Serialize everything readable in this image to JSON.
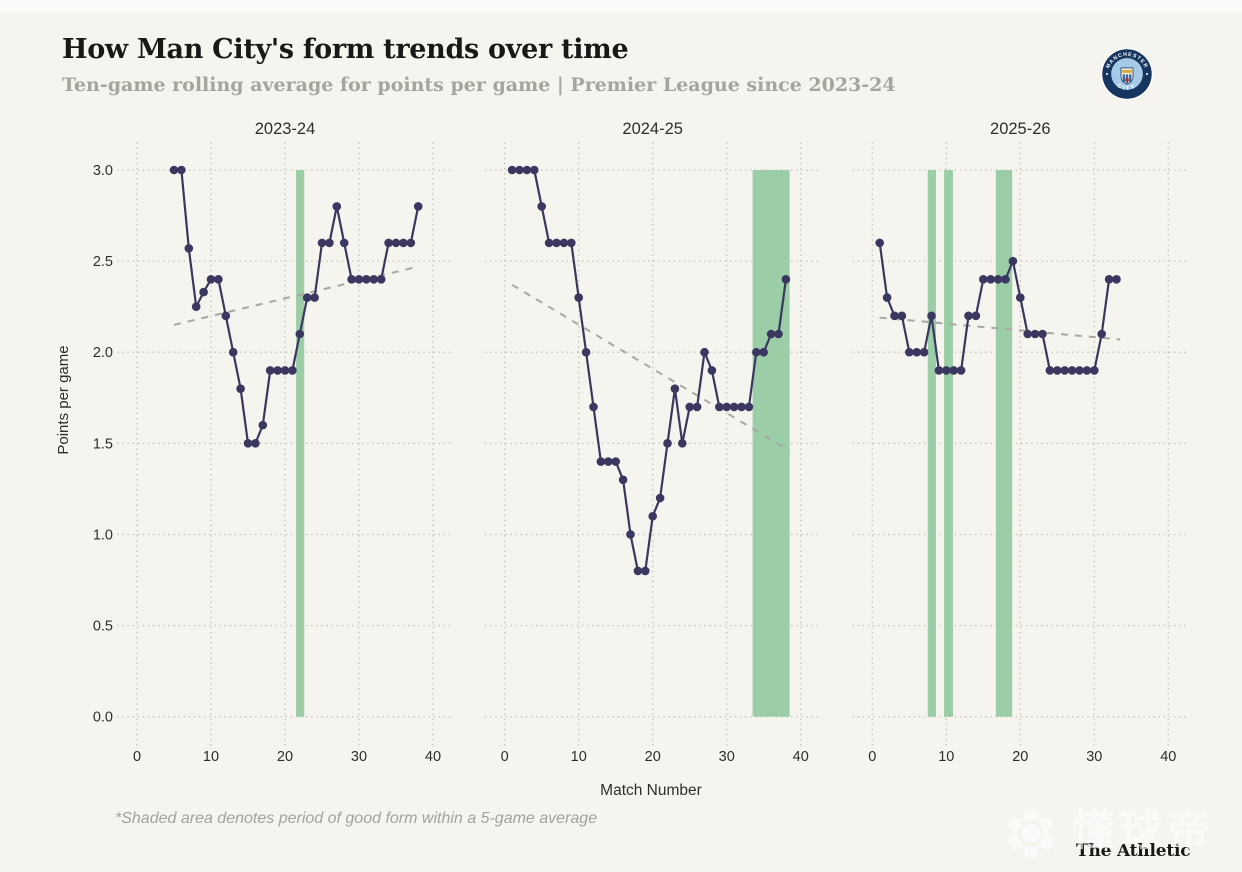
{
  "header": {
    "title": "How Man City's form trends over time",
    "subtitle": "Ten-game rolling average for points per game | Premier League since 2023-24",
    "badge": {
      "top_text": "MANCHESTER",
      "bottom_text": "CITY"
    }
  },
  "footer": {
    "footnote": "*Shaded area denotes period of good form within a 5-game average",
    "brand": "The Athletic",
    "watermark_text": "懂球帝"
  },
  "chart_data": {
    "type": "line",
    "xlabel": "Match Number",
    "ylabel": "Points per game",
    "xlim": [
      0,
      40
    ],
    "ylim": [
      0.0,
      3.0
    ],
    "xticks": [
      0,
      10,
      20,
      30,
      40
    ],
    "yticks": [
      "0.0",
      "0.5",
      "1.0",
      "1.5",
      "2.0",
      "2.5",
      "3.0"
    ],
    "grid": "dotted",
    "legend": "none",
    "facets": [
      {
        "title": "2023-24",
        "x": [
          5,
          6,
          7,
          8,
          9,
          10,
          11,
          12,
          13,
          14,
          15,
          16,
          17,
          18,
          19,
          20,
          21,
          22,
          23,
          24,
          25,
          26,
          27,
          28,
          29,
          30,
          31,
          32,
          33,
          34,
          35,
          36,
          37,
          38
        ],
        "y": [
          3.0,
          3.0,
          2.57,
          2.25,
          2.33,
          2.4,
          2.4,
          2.2,
          2.0,
          1.8,
          1.5,
          1.5,
          1.6,
          1.9,
          1.9,
          1.9,
          1.9,
          2.1,
          2.3,
          2.3,
          2.6,
          2.6,
          2.8,
          2.6,
          2.4,
          2.4,
          2.4,
          2.4,
          2.4,
          2.6,
          2.6,
          2.6,
          2.6,
          2.8
        ],
        "good_form_bands": [
          [
            21.5,
            22.6
          ]
        ],
        "trend": {
          "x1": 5,
          "y1": 2.15,
          "x2": 38,
          "y2": 2.47
        }
      },
      {
        "title": "2024-25",
        "x": [
          1,
          2,
          3,
          4,
          5,
          6,
          7,
          8,
          9,
          10,
          11,
          12,
          13,
          14,
          15,
          16,
          17,
          18,
          19,
          20,
          21,
          22,
          23,
          24,
          25,
          26,
          27,
          28,
          29,
          30,
          31,
          32,
          33,
          34,
          35,
          36,
          37,
          38
        ],
        "y": [
          3.0,
          3.0,
          3.0,
          3.0,
          2.8,
          2.6,
          2.6,
          2.6,
          2.6,
          2.3,
          2.0,
          1.7,
          1.4,
          1.4,
          1.4,
          1.3,
          1.0,
          0.8,
          0.8,
          1.1,
          1.2,
          1.5,
          1.8,
          1.5,
          1.7,
          1.7,
          2.0,
          1.9,
          1.7,
          1.7,
          1.7,
          1.7,
          1.7,
          2.0,
          2.0,
          2.1,
          2.1,
          2.4
        ],
        "good_form_bands": [
          [
            33.5,
            38.5
          ]
        ],
        "trend": {
          "x1": 1,
          "y1": 2.37,
          "x2": 38.5,
          "y2": 1.46
        }
      },
      {
        "title": "2025-26",
        "x": [
          1,
          2,
          3,
          4,
          5,
          6,
          7,
          8,
          9,
          10,
          11,
          12,
          13,
          14,
          15,
          16,
          17,
          18,
          19,
          20,
          21,
          22,
          23,
          24,
          25,
          26,
          27,
          28,
          29,
          30,
          31,
          32,
          33
        ],
        "y": [
          2.6,
          2.3,
          2.2,
          2.2,
          2.0,
          2.0,
          2.0,
          2.2,
          1.9,
          1.9,
          1.9,
          1.9,
          2.2,
          2.2,
          2.4,
          2.4,
          2.4,
          2.4,
          2.5,
          2.3,
          2.1,
          2.1,
          2.1,
          1.9,
          1.9,
          1.9,
          1.9,
          1.9,
          1.9,
          1.9,
          2.1,
          2.4,
          2.4
        ],
        "good_form_bands": [
          [
            7.5,
            8.6
          ],
          [
            9.7,
            10.9
          ],
          [
            16.7,
            18.9
          ]
        ],
        "trend": {
          "x1": 1,
          "y1": 2.19,
          "x2": 33.5,
          "y2": 2.07
        }
      }
    ],
    "colors": {
      "background": "#f5f4ee",
      "series": "#3a3760",
      "good_form_band": "#9bcda7",
      "trend": "#a9a8a1",
      "grid": "#c8c7bd",
      "tick_text": "#2f2e2b",
      "muted_text": "#a6a59d",
      "badge_navy": "#17365f",
      "badge_sky": "#a6cbe9"
    }
  }
}
